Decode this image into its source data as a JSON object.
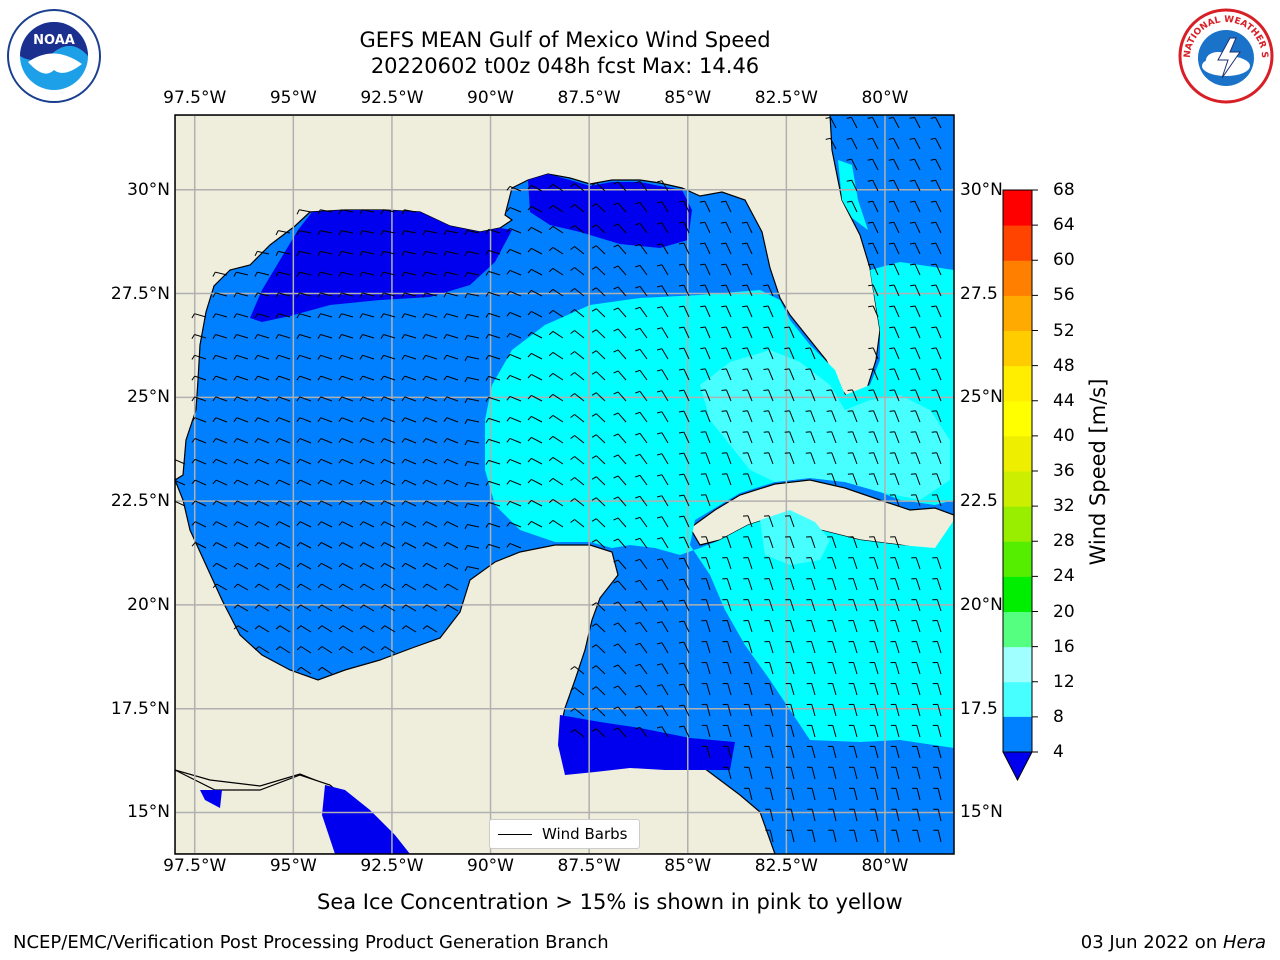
{
  "title": {
    "line1": "GEFS MEAN Gulf of Mexico Wind Speed",
    "line2": "20220602 t00z 048h fcst   Max: 14.46"
  },
  "logos": {
    "left": {
      "icon": "noaa-logo",
      "text": "NOAA"
    },
    "right": {
      "icon": "nws-logo",
      "text": "NATIONAL WEATHER SERVICE"
    }
  },
  "map": {
    "lon_labels": [
      "97.5°W",
      "95°W",
      "92.5°W",
      "90°W",
      "87.5°W",
      "85°W",
      "82.5°W",
      "80°W"
    ],
    "lat_labels_left": [
      "30°N",
      "27.5°N",
      "25°N",
      "22.5°N",
      "20°N",
      "17.5°N",
      "15°N"
    ],
    "lat_labels_right": [
      "30°N",
      "27.5",
      "25°N",
      "22.5",
      "20°N",
      "17.5",
      "15°N"
    ],
    "lon_range": [
      -98,
      -78.25
    ],
    "lat_range": [
      14,
      31.8
    ],
    "colors": {
      "land": "#efeedd",
      "water_4_8": "#0080ff",
      "water_lt4": "#0000ee",
      "water_8_12": "#00ffff",
      "water_12_16": "#47ffff"
    }
  },
  "colorbar": {
    "title": "Wind Speed [m/s]",
    "ticks": [
      "68",
      "64",
      "60",
      "56",
      "52",
      "48",
      "44",
      "40",
      "36",
      "32",
      "28",
      "24",
      "20",
      "16",
      "12",
      "8",
      "4"
    ],
    "colors": [
      "#0080ff",
      "#00ffff",
      "#47ffff",
      "#a0ffff",
      "#55ff7f",
      "#00ee00",
      "#55ee00",
      "#99ee00",
      "#ccee00",
      "#eeee00",
      "#ffff00",
      "#ffee00",
      "#ffcc00",
      "#ffaa00",
      "#ff7f00",
      "#ff4400",
      "#ff0000"
    ],
    "under_color": "#0000ee"
  },
  "legend": {
    "label": "Wind Barbs"
  },
  "caption": "Sea Ice Concentration > 15% is shown in pink to yellow",
  "footer": {
    "left": "NCEP/EMC/Verification Post Processing Product Generation Branch",
    "right_prefix": "03 Jun 2022 on ",
    "right_host": "Hera"
  }
}
